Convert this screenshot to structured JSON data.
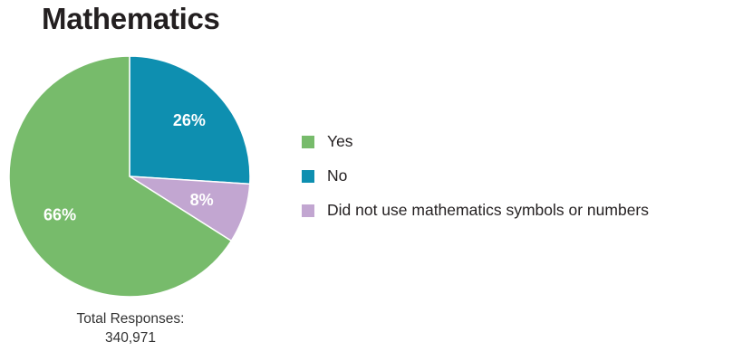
{
  "chart_data": {
    "type": "pie",
    "title": "Mathematics",
    "slices": [
      {
        "label": "Yes",
        "value": 66,
        "display": "66%",
        "color": "#77bb6b"
      },
      {
        "label": "No",
        "value": 26,
        "display": "26%",
        "color": "#0e8fb0"
      },
      {
        "label": "Did not use mathematics symbols or numbers",
        "value": 8,
        "display": "8%",
        "color": "#c2a6d1"
      }
    ],
    "legend_placement": "right",
    "total_label": "Total Responses:",
    "total_value": "340,971"
  }
}
